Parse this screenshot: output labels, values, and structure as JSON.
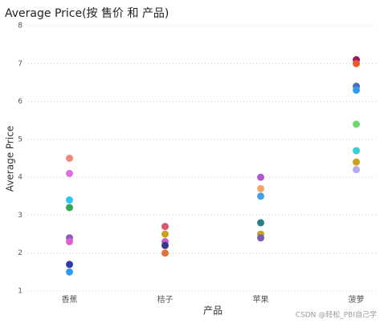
{
  "chart_data": {
    "type": "dot",
    "title": "Average Price(按 售价 和 产品)",
    "x_label": "产品",
    "y_label": "Average Price",
    "categories": [
      "香蕉",
      "桔子",
      "苹果",
      "菠萝"
    ],
    "values": [
      [
        4.5,
        4.1,
        3.4,
        3.2,
        2.4,
        2.3,
        1.7,
        1.5
      ],
      [
        2.7,
        2.5,
        2.3,
        2.2,
        2.0
      ],
      [
        4.0,
        3.7,
        3.5,
        2.8,
        2.5,
        2.4
      ],
      [
        7.1,
        7.0,
        6.4,
        6.3,
        5.4,
        4.7,
        4.4,
        4.2
      ]
    ],
    "colors": [
      [
        "#f4867e",
        "#e06fe4",
        "#2dc5f0",
        "#2fa84f",
        "#8c5bb5",
        "#e05fcf",
        "#2e3aa8",
        "#2d9cf0"
      ],
      [
        "#d9576a",
        "#c9a31d",
        "#c85bd0",
        "#3a3a8a",
        "#e0733a"
      ],
      [
        "#b057d4",
        "#f4a56a",
        "#4a9ee8",
        "#2a7f8a",
        "#c9a31d",
        "#7b5bb5"
      ],
      [
        "#a0145f",
        "#e85a2a",
        "#4a6fb5",
        "#2d9cf0",
        "#6fd36f",
        "#33d0d0",
        "#c9a31d",
        "#b8a8f0"
      ]
    ],
    "ylim": [
      1,
      8
    ],
    "yticks": [
      1,
      2,
      3,
      4,
      5,
      6,
      7,
      8
    ],
    "grid": true
  },
  "watermark": "CSDN @轻松_PBI自己学"
}
